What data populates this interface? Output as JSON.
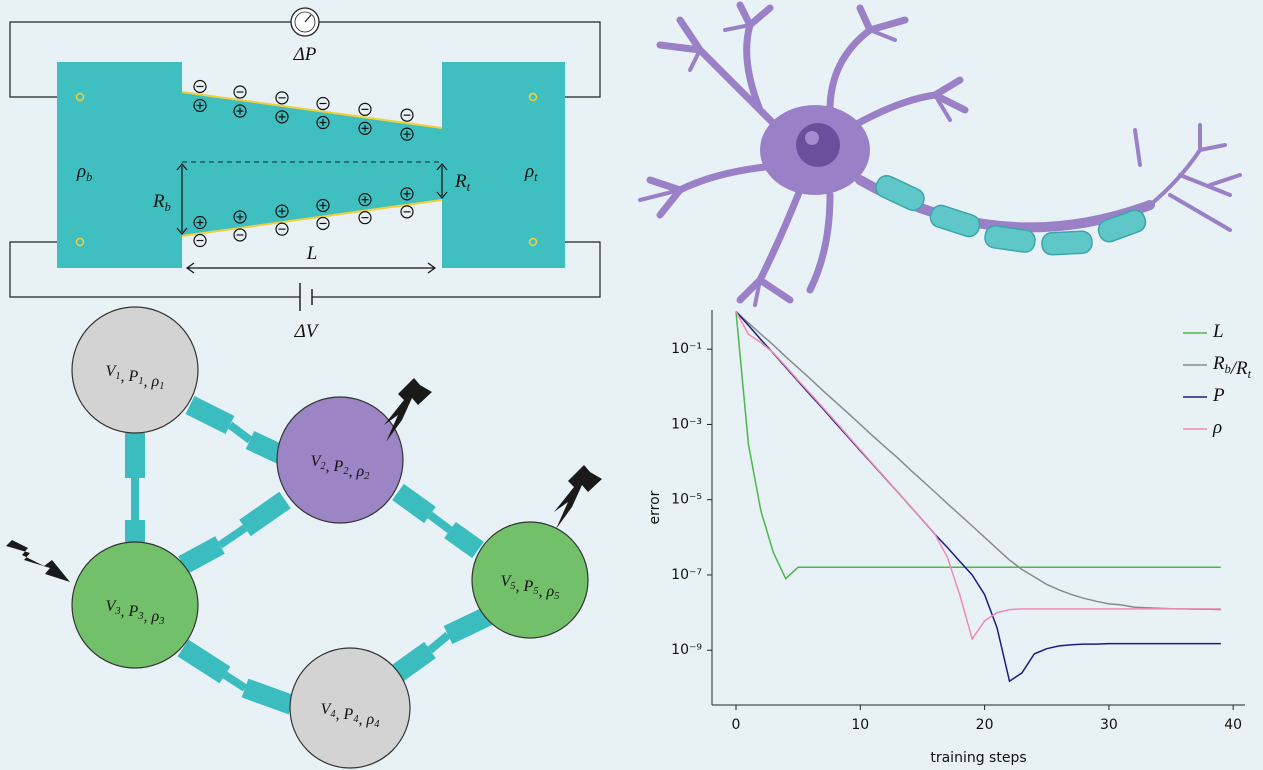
{
  "channel": {
    "delta_p": "ΔP",
    "delta_v": "ΔV",
    "length": "L",
    "r_b": "Rb",
    "r_t": "Rt",
    "rho_b": "ρb",
    "rho_t": "ρt"
  },
  "network": {
    "nodes": [
      {
        "label": "V1, P1, ρ1"
      },
      {
        "label": "V2, P2, ρ2"
      },
      {
        "label": "V3, P3, ρ3"
      },
      {
        "label": "V4, P4, ρ4"
      },
      {
        "label": "V5, P5, ρ5"
      }
    ]
  },
  "chart_data": {
    "type": "line",
    "xlabel": "training steps",
    "ylabel": "error",
    "log_y": true,
    "legend": "upper right",
    "x": [
      0,
      1,
      2,
      3,
      4,
      5,
      6,
      7,
      8,
      9,
      10,
      11,
      12,
      13,
      14,
      15,
      16,
      17,
      18,
      19,
      20,
      21,
      22,
      23,
      24,
      25,
      26,
      27,
      28,
      29,
      30,
      31,
      32,
      33,
      34,
      35,
      36,
      37,
      38,
      39
    ],
    "xlim": [
      -1.93,
      40.95
    ],
    "xticks": [
      0,
      10,
      20,
      30,
      40
    ],
    "ylim": [
      3.5e-11,
      1.1
    ],
    "yticks": [
      {
        "value": 0.1,
        "label": "10⁻¹"
      },
      {
        "value": 0.001,
        "label": "10⁻³"
      },
      {
        "value": 1e-05,
        "label": "10⁻⁵"
      },
      {
        "value": 1e-07,
        "label": "10⁻⁷"
      },
      {
        "value": 1e-09,
        "label": "10⁻⁹"
      }
    ],
    "series": [
      {
        "name": "L",
        "color": "#4cb84c",
        "values": [
          1,
          0.0003,
          5e-06,
          4e-07,
          8e-08,
          1.6e-07,
          1.6e-07,
          1.6e-07,
          1.6e-07,
          1.6e-07,
          1.6e-07,
          1.6e-07,
          1.6e-07,
          1.6e-07,
          1.6e-07,
          1.6e-07,
          1.6e-07,
          1.6e-07,
          1.6e-07,
          1.6e-07,
          1.6e-07,
          1.6e-07,
          1.6e-07,
          1.6e-07,
          1.6e-07,
          1.6e-07,
          1.6e-07,
          1.6e-07,
          1.6e-07,
          1.6e-07,
          1.6e-07,
          1.6e-07,
          1.6e-07,
          1.6e-07,
          1.6e-07,
          1.6e-07,
          1.6e-07,
          1.6e-07,
          1.6e-07,
          1.6e-07
        ]
      },
      {
        "name": "Rb/Rt",
        "color": "#8a8a8a",
        "values": [
          1,
          0.5,
          0.25,
          0.13,
          0.063,
          0.032,
          0.016,
          0.0079,
          0.004,
          0.002,
          0.001,
          0.0005,
          0.00025,
          0.00013,
          6.3e-05,
          3.2e-05,
          1.6e-05,
          7.9e-06,
          4e-06,
          2e-06,
          1e-06,
          5e-07,
          2.5e-07,
          1.4e-07,
          8.9e-08,
          5.6e-08,
          4e-08,
          3e-08,
          2.4e-08,
          2e-08,
          1.7e-08,
          1.6e-08,
          1.4e-08,
          1.35e-08,
          1.3e-08,
          1.27e-08,
          1.25e-08,
          1.23e-08,
          1.22e-08,
          1.2e-08
        ]
      },
      {
        "name": "P",
        "color": "#1c1c80",
        "values": [
          1,
          0.43,
          0.18,
          0.078,
          0.033,
          0.014,
          0.006,
          0.0026,
          0.0011,
          0.00047,
          0.0002,
          8.7e-05,
          3.7e-05,
          1.6e-05,
          6.8e-06,
          2.9e-06,
          1.2e-06,
          5.4e-07,
          2.3e-07,
          1e-07,
          3e-08,
          4e-09,
          1.5e-10,
          2.5e-10,
          8e-10,
          1.1e-09,
          1.3e-09,
          1.4e-09,
          1.45e-09,
          1.45e-09,
          1.5e-09,
          1.5e-09,
          1.5e-09,
          1.5e-09,
          1.5e-09,
          1.5e-09,
          1.5e-09,
          1.5e-09,
          1.5e-09,
          1.5e-09
        ]
      },
      {
        "name": "ρ",
        "color": "#f08ab4",
        "values": [
          1,
          0.25,
          0.15,
          0.08,
          0.035,
          0.015,
          0.0065,
          0.0028,
          0.0012,
          0.0005,
          0.00021,
          9e-05,
          3.8e-05,
          1.6e-05,
          6.8e-06,
          2.9e-06,
          1.2e-06,
          3e-07,
          3e-08,
          2e-09,
          6e-09,
          1e-08,
          1.2e-08,
          1.25e-08,
          1.25e-08,
          1.25e-08,
          1.25e-08,
          1.25e-08,
          1.25e-08,
          1.25e-08,
          1.25e-08,
          1.25e-08,
          1.25e-08,
          1.25e-08,
          1.25e-08,
          1.25e-08,
          1.25e-08,
          1.25e-08,
          1.25e-08,
          1.25e-08
        ]
      }
    ]
  }
}
